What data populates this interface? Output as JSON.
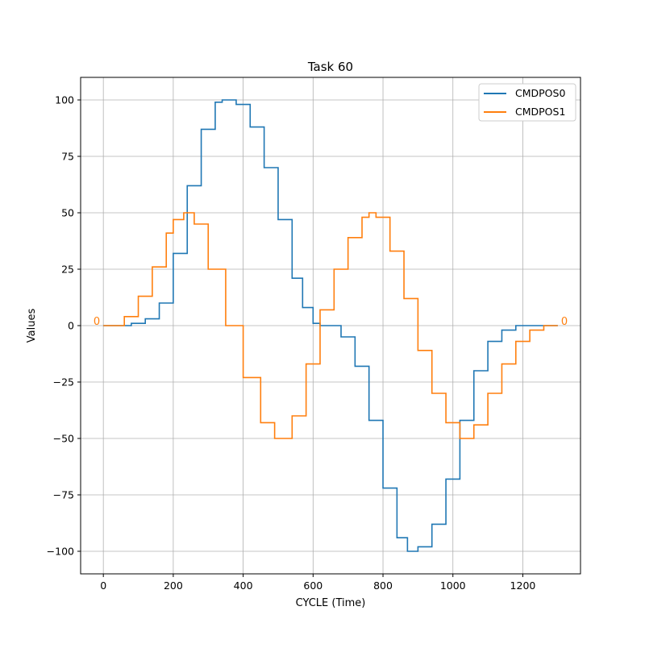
{
  "chart_data": {
    "type": "line",
    "title": "Task 60",
    "xlabel": "CYCLE (Time)",
    "ylabel": "Values",
    "xlim": [
      -65,
      1365
    ],
    "ylim": [
      -110,
      110
    ],
    "xticks": [
      0,
      200,
      400,
      600,
      800,
      1000,
      1200
    ],
    "yticks": [
      -100,
      -75,
      -50,
      -25,
      0,
      25,
      50,
      75,
      100
    ],
    "grid": true,
    "legend_position": "top-right",
    "series": [
      {
        "name": "CMDPOS0",
        "color": "#1f77b4",
        "step": true,
        "x": [
          0,
          40,
          80,
          120,
          160,
          200,
          240,
          280,
          320,
          340,
          380,
          420,
          460,
          500,
          540,
          570,
          600,
          620,
          640,
          680,
          720,
          760,
          800,
          840,
          870,
          880,
          900,
          940,
          980,
          1020,
          1060,
          1100,
          1140,
          1180,
          1220,
          1250,
          1300
        ],
        "y": [
          0,
          0,
          1,
          3,
          10,
          32,
          62,
          87,
          99,
          100,
          98,
          88,
          70,
          47,
          21,
          8,
          1,
          0,
          0,
          -5,
          -18,
          -42,
          -72,
          -94,
          -100,
          -100,
          -98,
          -88,
          -68,
          -42,
          -20,
          -7,
          -2,
          0,
          0,
          0,
          0
        ]
      },
      {
        "name": "CMDPOS1",
        "color": "#ff7f0e",
        "step": true,
        "x": [
          0,
          20,
          60,
          100,
          140,
          180,
          200,
          230,
          260,
          300,
          350,
          400,
          450,
          490,
          500,
          540,
          580,
          620,
          660,
          700,
          740,
          760,
          780,
          820,
          860,
          900,
          940,
          980,
          1020,
          1030,
          1060,
          1100,
          1140,
          1180,
          1220,
          1260,
          1300
        ],
        "y": [
          0,
          0,
          4,
          13,
          26,
          41,
          47,
          50,
          45,
          25,
          0,
          -23,
          -43,
          -50,
          -50,
          -40,
          -17,
          7,
          25,
          39,
          48,
          50,
          48,
          33,
          12,
          -11,
          -30,
          -43,
          -50,
          -50,
          -44,
          -30,
          -17,
          -7,
          -2,
          0,
          0
        ]
      }
    ],
    "annotations": [
      {
        "text": "0",
        "x": 0,
        "y": 0,
        "side": "left"
      },
      {
        "text": "0",
        "x": 1300,
        "y": 0,
        "side": "right"
      }
    ]
  }
}
